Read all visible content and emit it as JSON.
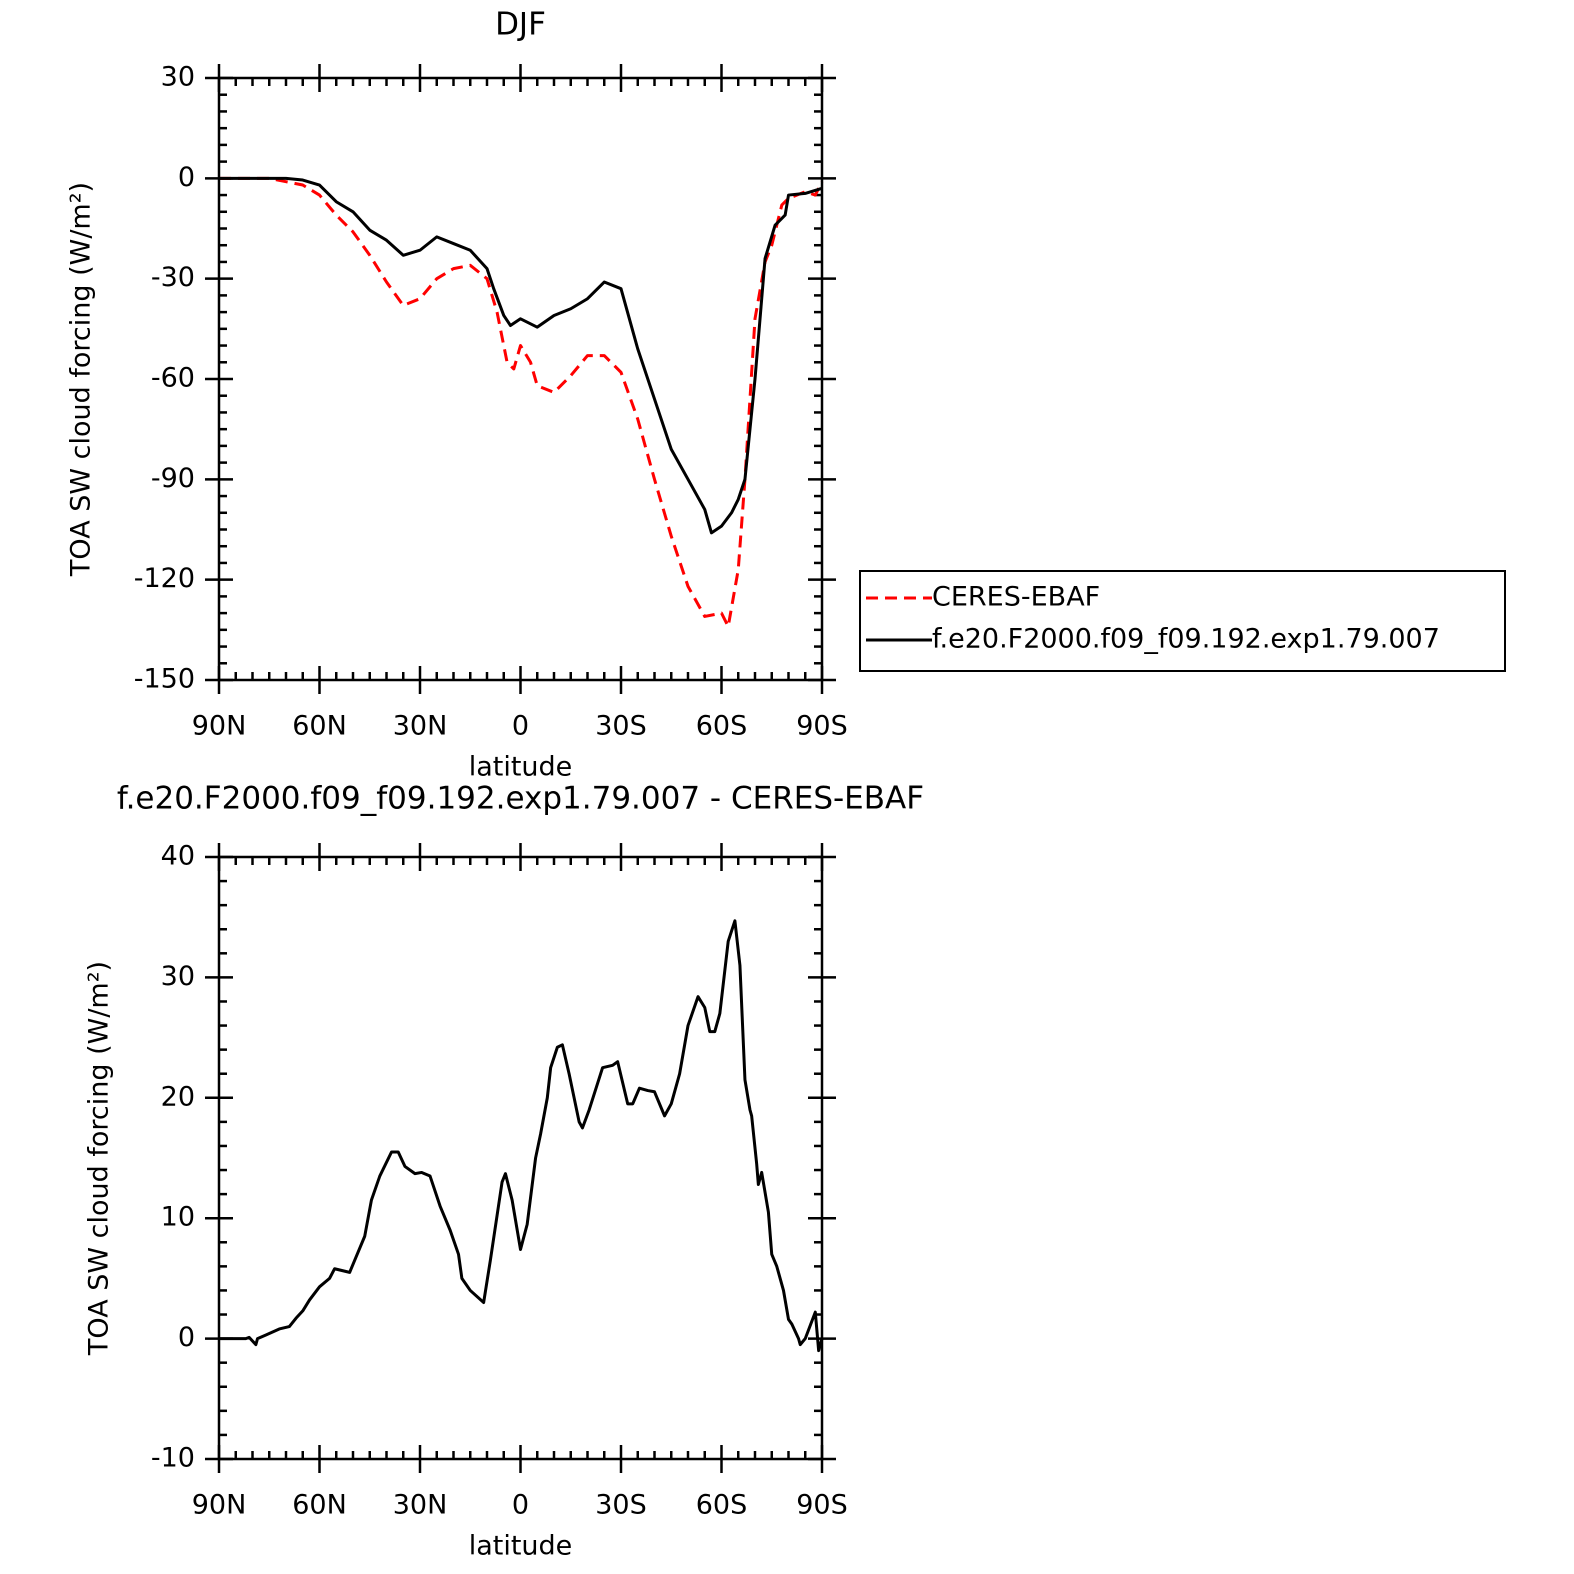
{
  "chart_data": [
    {
      "type": "line",
      "title": "DJF",
      "xlabel": "latitude",
      "ylabel": "TOA SW cloud forcing (W/m²)",
      "xlim": [
        90,
        -90
      ],
      "xticks": [
        {
          "value": 90,
          "label": "90N"
        },
        {
          "value": 60,
          "label": "60N"
        },
        {
          "value": 30,
          "label": "30N"
        },
        0,
        {
          "value": -30,
          "label": "30S"
        },
        {
          "value": -60,
          "label": "60S"
        },
        {
          "value": -90,
          "label": "90S"
        }
      ],
      "ylim": [
        -150,
        30
      ],
      "yticks": [
        -150,
        -120,
        -90,
        -60,
        -30,
        0,
        30
      ],
      "legend": "right",
      "series": [
        {
          "name": "CERES-EBAF",
          "color": "#ff0000",
          "line_style": "dashed",
          "x": [
            90,
            75,
            70,
            65,
            60,
            55,
            50,
            45,
            40,
            35,
            30,
            25,
            20,
            15,
            10,
            7,
            4,
            2,
            0,
            -3,
            -5,
            -10,
            -15,
            -20,
            -25,
            -30,
            -35,
            -40,
            -45,
            -50,
            -55,
            -60,
            -62,
            -65,
            -67,
            -70,
            -73,
            -75,
            -78,
            -80,
            -85,
            -88,
            -90
          ],
          "values": [
            0,
            0,
            -1,
            -2,
            -5,
            -11,
            -16,
            -23,
            -31,
            -38,
            -36,
            -30,
            -27,
            -26,
            -30,
            -40,
            -55,
            -57,
            -50,
            -55,
            -62,
            -64,
            -59,
            -53,
            -53,
            -58,
            -72,
            -90,
            -107,
            -122,
            -131,
            -130,
            -134,
            -117,
            -90,
            -42,
            -25,
            -20,
            -8,
            -6,
            -4,
            -5,
            -1
          ]
        },
        {
          "name": "f.e20.F2000.f09_f09.192.exp1.79.007",
          "color": "#000000",
          "line_style": "solid",
          "x": [
            90,
            80,
            70,
            65,
            60,
            55,
            50,
            45,
            40,
            35,
            30,
            25,
            20,
            15,
            10,
            8,
            5,
            3,
            0,
            -5,
            -10,
            -15,
            -20,
            -25,
            -30,
            -35,
            -40,
            -45,
            -50,
            -55,
            -57,
            -60,
            -63,
            -65,
            -67,
            -70,
            -73,
            -76,
            -79,
            -80,
            -85,
            -90
          ],
          "values": [
            0,
            0,
            0,
            -0.5,
            -2,
            -7,
            -10,
            -15.5,
            -18.5,
            -23,
            -21.5,
            -17.5,
            -19.5,
            -21.5,
            -27,
            -33,
            -41,
            -44,
            -42,
            -44.5,
            -41,
            -39,
            -36,
            -31,
            -33,
            -51,
            -66,
            -81,
            -90,
            -99,
            -106,
            -104,
            -100,
            -96,
            -90,
            -60,
            -24,
            -14,
            -11,
            -5,
            -4.5,
            -3
          ]
        }
      ]
    },
    {
      "type": "line",
      "title": "f.e20.F2000.f09_f09.192.exp1.79.007 - CERES-EBAF",
      "xlabel": "latitude",
      "ylabel": "TOA SW cloud forcing (W/m²)",
      "xlim": [
        90,
        -90
      ],
      "xticks": [
        {
          "value": 90,
          "label": "90N"
        },
        {
          "value": 60,
          "label": "60N"
        },
        {
          "value": 30,
          "label": "30N"
        },
        0,
        {
          "value": -30,
          "label": "30S"
        },
        {
          "value": -60,
          "label": "60S"
        },
        {
          "value": -90,
          "label": "90S"
        }
      ],
      "ylim": [
        -10,
        40
      ],
      "yticks": [
        -10,
        0,
        10,
        20,
        30,
        40
      ],
      "series": [
        {
          "color": "#000000",
          "line_style": "solid",
          "x": [
            90,
            82,
            81,
            79,
            78.5,
            76,
            72,
            69,
            67,
            65,
            63,
            60,
            57,
            55.5,
            51,
            49.5,
            46.5,
            44.5,
            42,
            38.5,
            36.5,
            34.5,
            31.5,
            29.5,
            27,
            24,
            21,
            18.5,
            17.5,
            15,
            11,
            9,
            5.5,
            4.5,
            2.5,
            0,
            -2,
            -4.5,
            -6,
            -8,
            -9,
            -11,
            -12.5,
            -14.5,
            -17.5,
            -18.5,
            -20.5,
            -24.5,
            -27.5,
            -29,
            -32,
            -33.5,
            -35.5,
            -38,
            -40,
            -43,
            -45,
            -47.5,
            -50,
            -53,
            -55,
            -56.5,
            -58,
            -59.5,
            -62,
            -64,
            -65.5,
            -67,
            -68.5,
            -69,
            -70.5,
            -71,
            -72,
            -74,
            -75,
            -76.5,
            -78.5,
            -80,
            -81,
            -83,
            -83.5,
            -85,
            -88,
            -89,
            -90
          ],
          "values": [
            0,
            0,
            0.1,
            -0.5,
            0,
            0.3,
            0.8,
            1,
            1.7,
            2.3,
            3.2,
            4.3,
            5,
            5.8,
            5.5,
            6.5,
            8.5,
            11.5,
            13.5,
            15.5,
            15.5,
            14.3,
            13.7,
            13.8,
            13.5,
            11,
            9,
            7,
            5,
            4,
            3,
            6.5,
            13,
            13.7,
            11.5,
            7.4,
            9.5,
            15,
            17,
            20,
            22.5,
            24.2,
            24.4,
            22,
            18,
            17.5,
            19,
            22.5,
            22.7,
            23,
            19.5,
            19.5,
            20.8,
            20.6,
            20.5,
            18.5,
            19.5,
            22,
            26,
            28.4,
            27.5,
            25.5,
            25.5,
            27,
            33,
            34.7,
            31,
            21.5,
            19,
            18.5,
            14.5,
            12.8,
            13.8,
            10.5,
            7,
            6,
            4,
            1.6,
            1.2,
            0,
            -0.5,
            0,
            2.2,
            -1,
            0
          ]
        }
      ]
    }
  ]
}
